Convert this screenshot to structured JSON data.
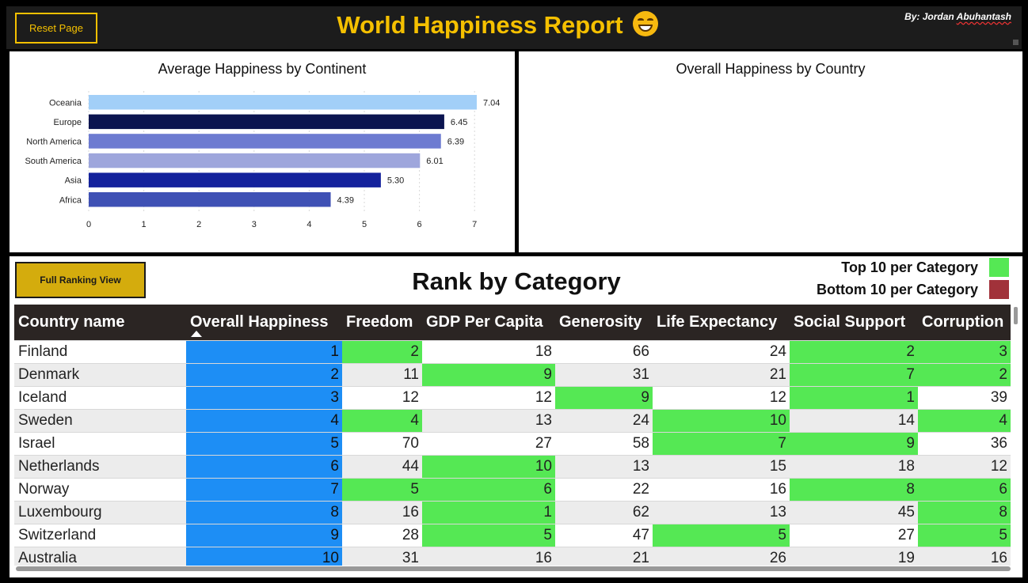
{
  "header": {
    "reset_label": "Reset Page",
    "title": "World Happiness Report",
    "title_emoji": "grinning-face-icon",
    "byline_prefix": "By: Jordan ",
    "byline_surname": "Abuhantash"
  },
  "continent_chart": {
    "title": "Average Happiness by Continent"
  },
  "chart_data": {
    "type": "bar",
    "orientation": "horizontal",
    "title": "Average Happiness by Continent",
    "categories": [
      "Oceania",
      "Europe",
      "North America",
      "South America",
      "Asia",
      "Africa"
    ],
    "values": [
      7.04,
      6.45,
      6.39,
      6.01,
      5.3,
      4.39
    ],
    "value_labels": [
      "7.04",
      "6.45",
      "6.39",
      "6.01",
      "5.30",
      "4.39"
    ],
    "colors": [
      "#a2cff8",
      "#0b1450",
      "#6d7bd1",
      "#9ea6dc",
      "#14229c",
      "#3f51b5"
    ],
    "xlim": [
      0,
      7.2
    ],
    "xticks": [
      "0",
      "1",
      "2",
      "3",
      "4",
      "5",
      "6",
      "7"
    ],
    "grid": "vertical-dashed",
    "xlabel": "",
    "ylabel": ""
  },
  "country_map": {
    "title": "Overall Happiness by Country"
  },
  "rank_section": {
    "full_ranking_label": "Full Ranking View",
    "title": "Rank by Category",
    "legend_top_label": "Top 10 per Category",
    "legend_top_color": "#55e854",
    "legend_bottom_label": "Bottom 10 per Category",
    "legend_bottom_color": "#a1323a"
  },
  "table": {
    "columns": [
      "Country name",
      "Overall Happiness",
      "Freedom",
      "GDP Per Capita",
      "Generosity",
      "Life Expectancy",
      "Social Support",
      "Corruption"
    ],
    "sort_column": "Overall Happiness",
    "overall_color": "#1d8ef5",
    "rows": [
      {
        "name": "Finland",
        "vals": [
          "1",
          "2",
          "18",
          "66",
          "24",
          "2",
          "3"
        ]
      },
      {
        "name": "Denmark",
        "vals": [
          "2",
          "11",
          "9",
          "31",
          "21",
          "7",
          "2"
        ]
      },
      {
        "name": "Iceland",
        "vals": [
          "3",
          "12",
          "12",
          "9",
          "12",
          "1",
          "39"
        ]
      },
      {
        "name": "Sweden",
        "vals": [
          "4",
          "4",
          "13",
          "24",
          "10",
          "14",
          "4"
        ]
      },
      {
        "name": "Israel",
        "vals": [
          "5",
          "70",
          "27",
          "58",
          "7",
          "9",
          "36"
        ]
      },
      {
        "name": "Netherlands",
        "vals": [
          "6",
          "44",
          "10",
          "13",
          "15",
          "18",
          "12"
        ]
      },
      {
        "name": "Norway",
        "vals": [
          "7",
          "5",
          "6",
          "22",
          "16",
          "8",
          "6"
        ]
      },
      {
        "name": "Luxembourg",
        "vals": [
          "8",
          "16",
          "1",
          "62",
          "13",
          "45",
          "8"
        ]
      },
      {
        "name": "Switzerland",
        "vals": [
          "9",
          "28",
          "5",
          "47",
          "5",
          "27",
          "5"
        ]
      },
      {
        "name": "Australia",
        "vals": [
          "10",
          "31",
          "16",
          "21",
          "26",
          "19",
          "16"
        ]
      }
    ]
  }
}
